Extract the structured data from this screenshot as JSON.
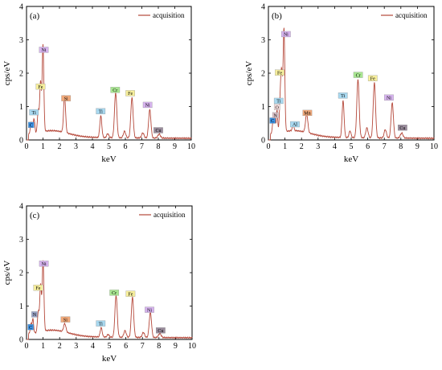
{
  "chart_data": [
    {
      "type": "line",
      "panel": "(a)",
      "xlabel": "keV",
      "ylabel": "cps/eV",
      "xlim": [
        0,
        10
      ],
      "ylim": [
        0,
        4
      ],
      "xticks": [
        "0",
        "1",
        "2",
        "3",
        "4",
        "5",
        "6",
        "7",
        "8",
        "9",
        "10"
      ],
      "yticks": [
        "0",
        "1",
        "2",
        "3",
        "4"
      ],
      "legend": "acquisition",
      "legend_position": "top-right",
      "series_color": "#b5483a",
      "peaks": [
        {
          "x": 0.28,
          "h": 0.35,
          "w": 0.05
        },
        {
          "x": 0.45,
          "h": 0.45,
          "w": 0.05
        },
        {
          "x": 0.71,
          "h": 0.65,
          "w": 0.05
        },
        {
          "x": 0.85,
          "h": 1.5,
          "w": 0.05
        },
        {
          "x": 1.0,
          "h": 2.6,
          "w": 0.05
        },
        {
          "x": 2.31,
          "h": 1.1,
          "w": 0.06
        },
        {
          "x": 4.51,
          "h": 0.65,
          "w": 0.06
        },
        {
          "x": 4.93,
          "h": 0.12,
          "w": 0.06
        },
        {
          "x": 5.41,
          "h": 1.35,
          "w": 0.07
        },
        {
          "x": 5.95,
          "h": 0.2,
          "w": 0.07
        },
        {
          "x": 6.4,
          "h": 1.2,
          "w": 0.07
        },
        {
          "x": 7.06,
          "h": 0.15,
          "w": 0.07
        },
        {
          "x": 7.48,
          "h": 0.85,
          "w": 0.07
        },
        {
          "x": 8.05,
          "h": 0.12,
          "w": 0.08
        }
      ],
      "labels": [
        {
          "text": "C",
          "x": 0.28,
          "y": 0.45,
          "color": "#3a8fe0"
        },
        {
          "text": "Ti",
          "x": 0.45,
          "y": 0.83,
          "color": "#a8d8ef"
        },
        {
          "text": "Fe",
          "x": 0.85,
          "y": 1.6,
          "color": "#f6ee9c"
        },
        {
          "text": "Ni",
          "x": 1.05,
          "y": 2.7,
          "color": "#d6b3ee"
        },
        {
          "text": "Si",
          "x": 2.4,
          "y": 1.25,
          "color": "#f0a879"
        },
        {
          "text": "Ti",
          "x": 4.5,
          "y": 0.86,
          "color": "#a8d8ef"
        },
        {
          "text": "Cr",
          "x": 5.38,
          "y": 1.5,
          "color": "#a9e792"
        },
        {
          "text": "Fe",
          "x": 6.3,
          "y": 1.4,
          "color": "#f6ee9c"
        },
        {
          "text": "Ni",
          "x": 7.35,
          "y": 1.05,
          "color": "#d6b3ee"
        },
        {
          "text": "Cu",
          "x": 8.0,
          "y": 0.29,
          "color": "#9a8c9c"
        }
      ]
    },
    {
      "type": "line",
      "panel": "(b)",
      "xlabel": "keV",
      "ylabel": "cps/eV",
      "xlim": [
        0,
        10
      ],
      "ylim": [
        0,
        4
      ],
      "xticks": [
        "0",
        "1",
        "2",
        "3",
        "4",
        "5",
        "6",
        "7",
        "8",
        "9",
        "10"
      ],
      "yticks": [
        "0",
        "1",
        "2",
        "3",
        "4"
      ],
      "legend": "acquisition",
      "legend_position": "top-right",
      "series_color": "#b5483a",
      "peaks": [
        {
          "x": 0.28,
          "h": 0.35,
          "w": 0.05
        },
        {
          "x": 0.39,
          "h": 0.5,
          "w": 0.04
        },
        {
          "x": 0.52,
          "h": 0.7,
          "w": 0.04
        },
        {
          "x": 0.71,
          "h": 0.9,
          "w": 0.05
        },
        {
          "x": 0.8,
          "h": 1.7,
          "w": 0.05
        },
        {
          "x": 0.94,
          "h": 3.1,
          "w": 0.05
        },
        {
          "x": 1.49,
          "h": 0.18,
          "w": 0.05
        },
        {
          "x": 2.31,
          "h": 0.55,
          "w": 0.07
        },
        {
          "x": 4.51,
          "h": 1.1,
          "w": 0.06
        },
        {
          "x": 4.93,
          "h": 0.2,
          "w": 0.06
        },
        {
          "x": 5.41,
          "h": 1.75,
          "w": 0.07
        },
        {
          "x": 5.95,
          "h": 0.3,
          "w": 0.07
        },
        {
          "x": 6.4,
          "h": 1.65,
          "w": 0.07
        },
        {
          "x": 7.06,
          "h": 0.25,
          "w": 0.07
        },
        {
          "x": 7.48,
          "h": 1.05,
          "w": 0.07
        },
        {
          "x": 8.05,
          "h": 0.15,
          "w": 0.08
        }
      ],
      "labels": [
        {
          "text": "C",
          "x": 0.25,
          "y": 0.58,
          "color": "#3a8fe0"
        },
        {
          "text": "N",
          "x": 0.42,
          "y": 0.74,
          "color": "#d9c0c6"
        },
        {
          "text": "O",
          "x": 0.52,
          "y": 0.98,
          "color": "#f4dddd"
        },
        {
          "text": "Ti",
          "x": 0.62,
          "y": 1.17,
          "color": "#a8d8ef"
        },
        {
          "text": "Fe",
          "x": 0.68,
          "y": 2.02,
          "color": "#f6ee9c"
        },
        {
          "text": "Ni",
          "x": 1.06,
          "y": 3.17,
          "color": "#d6b3ee"
        },
        {
          "text": "Al",
          "x": 1.6,
          "y": 0.47,
          "color": "#a8d8ef"
        },
        {
          "text": "Mn",
          "x": 2.35,
          "y": 0.81,
          "color": "#f0a879"
        },
        {
          "text": "Ti",
          "x": 4.5,
          "y": 1.33,
          "color": "#a8d8ef"
        },
        {
          "text": "Cr",
          "x": 5.42,
          "y": 1.95,
          "color": "#a9e792"
        },
        {
          "text": "Fe",
          "x": 6.3,
          "y": 1.85,
          "color": "#f6ee9c"
        },
        {
          "text": "Ni",
          "x": 7.28,
          "y": 1.27,
          "color": "#d6b3ee"
        },
        {
          "text": "Cu",
          "x": 8.1,
          "y": 0.37,
          "color": "#9a8c9c"
        }
      ]
    },
    {
      "type": "line",
      "panel": "(c)",
      "xlabel": "keV",
      "ylabel": "cps/eV",
      "xlim": [
        0,
        10
      ],
      "ylim": [
        0,
        4
      ],
      "xticks": [
        "0",
        "1",
        "2",
        "3",
        "4",
        "5",
        "6",
        "7",
        "8",
        "9",
        "10"
      ],
      "yticks": [
        "0",
        "1",
        "2",
        "3",
        "4"
      ],
      "legend": "acquisition",
      "legend_position": "top-right",
      "series_color": "#b5483a",
      "peaks": [
        {
          "x": 0.28,
          "h": 0.3,
          "w": 0.05
        },
        {
          "x": 0.39,
          "h": 0.4,
          "w": 0.04
        },
        {
          "x": 0.71,
          "h": 0.6,
          "w": 0.05
        },
        {
          "x": 0.85,
          "h": 1.4,
          "w": 0.05
        },
        {
          "x": 1.0,
          "h": 2.1,
          "w": 0.05
        },
        {
          "x": 2.31,
          "h": 0.25,
          "w": 0.07
        },
        {
          "x": 4.51,
          "h": 0.28,
          "w": 0.06
        },
        {
          "x": 4.93,
          "h": 0.08,
          "w": 0.06
        },
        {
          "x": 5.41,
          "h": 1.25,
          "w": 0.07
        },
        {
          "x": 5.95,
          "h": 0.2,
          "w": 0.07
        },
        {
          "x": 6.4,
          "h": 1.2,
          "w": 0.07
        },
        {
          "x": 7.06,
          "h": 0.15,
          "w": 0.07
        },
        {
          "x": 7.48,
          "h": 0.75,
          "w": 0.07
        },
        {
          "x": 8.05,
          "h": 0.12,
          "w": 0.08
        }
      ],
      "labels": [
        {
          "text": "C",
          "x": 0.25,
          "y": 0.37,
          "color": "#3a8fe0"
        },
        {
          "text": "N",
          "x": 0.48,
          "y": 0.75,
          "color": "#9aa4c8"
        },
        {
          "text": "Fe",
          "x": 0.7,
          "y": 1.55,
          "color": "#f6ee9c"
        },
        {
          "text": "Ni",
          "x": 1.05,
          "y": 2.27,
          "color": "#d6b3ee"
        },
        {
          "text": "Si",
          "x": 2.35,
          "y": 0.6,
          "color": "#f0a879"
        },
        {
          "text": "Ti",
          "x": 4.48,
          "y": 0.48,
          "color": "#a8d8ef"
        },
        {
          "text": "Cr",
          "x": 5.3,
          "y": 1.4,
          "color": "#a9e792"
        },
        {
          "text": "Fe",
          "x": 6.28,
          "y": 1.37,
          "color": "#f6ee9c"
        },
        {
          "text": "Ni",
          "x": 7.43,
          "y": 0.89,
          "color": "#d6b3ee"
        },
        {
          "text": "Cu",
          "x": 8.1,
          "y": 0.27,
          "color": "#9a8c9c"
        }
      ]
    }
  ]
}
